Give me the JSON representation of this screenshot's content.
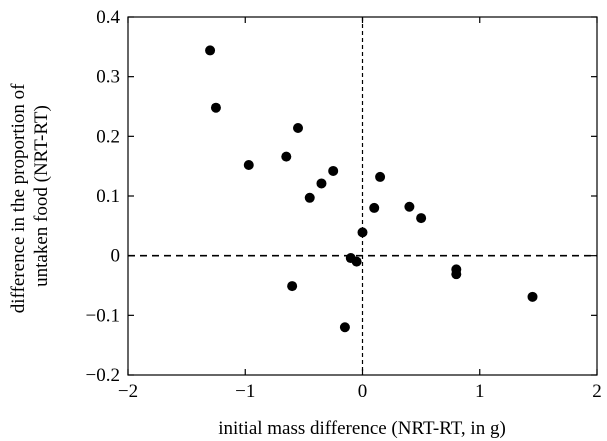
{
  "chart_data": {
    "type": "scatter",
    "title": "",
    "xlabel": "initial mass difference (NRT-RT, in g)",
    "ylabel_lines": [
      "difference in the proportion of",
      "untaken food (NRT-RT)"
    ],
    "xlim": [
      -2,
      2
    ],
    "ylim": [
      -0.2,
      0.4
    ],
    "x_ticks": [
      -2,
      -1,
      0,
      1,
      2
    ],
    "x_tick_labels": [
      "−2",
      "−1",
      "0",
      "1",
      "2"
    ],
    "y_ticks": [
      -0.2,
      -0.1,
      0,
      0.1,
      0.2,
      0.3,
      0.4
    ],
    "y_tick_labels": [
      "−0.2",
      "−0.1",
      "0",
      "0.1",
      "0.2",
      "0.3",
      "0.4"
    ],
    "reference_lines": {
      "x": 0,
      "y": 0,
      "style": "dashed"
    },
    "grid": false,
    "marker_color": "#000000",
    "points": [
      {
        "x": -1.3,
        "y": 0.344
      },
      {
        "x": -1.25,
        "y": 0.248
      },
      {
        "x": -0.97,
        "y": 0.152
      },
      {
        "x": -0.65,
        "y": 0.166
      },
      {
        "x": -0.55,
        "y": 0.214
      },
      {
        "x": -0.45,
        "y": 0.097
      },
      {
        "x": -0.35,
        "y": 0.121
      },
      {
        "x": -0.25,
        "y": 0.142
      },
      {
        "x": -0.6,
        "y": -0.051
      },
      {
        "x": -0.15,
        "y": -0.12
      },
      {
        "x": -0.1,
        "y": -0.004
      },
      {
        "x": -0.05,
        "y": -0.01
      },
      {
        "x": 0.0,
        "y": 0.039
      },
      {
        "x": 0.1,
        "y": 0.08
      },
      {
        "x": 0.15,
        "y": 0.132
      },
      {
        "x": 0.4,
        "y": 0.082
      },
      {
        "x": 0.5,
        "y": 0.063
      },
      {
        "x": 0.8,
        "y": -0.023
      },
      {
        "x": 0.8,
        "y": -0.031
      },
      {
        "x": 1.45,
        "y": -0.069
      }
    ]
  }
}
